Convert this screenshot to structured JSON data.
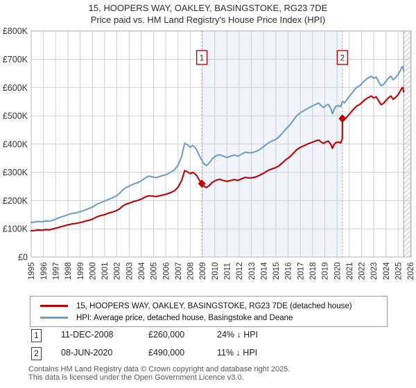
{
  "title": {
    "line1": "15, HOOPERS WAY, OAKLEY, BASINGSTOKE, RG23 7DE",
    "line2": "Price paid vs. HM Land Registry's House Price Index (HPI)"
  },
  "chart_data": {
    "type": "line",
    "x_range": [
      1995,
      2026.06
    ],
    "y_range": [
      0,
      800
    ],
    "x_ticks": [
      1995,
      1996,
      1997,
      1998,
      1999,
      2000,
      2001,
      2002,
      2003,
      2004,
      2005,
      2006,
      2007,
      2008,
      2009,
      2010,
      2011,
      2012,
      2013,
      2014,
      2015,
      2016,
      2017,
      2018,
      2019,
      2020,
      2021,
      2022,
      2023,
      2024,
      2025,
      2026
    ],
    "y_tick_values": [
      0,
      100,
      200,
      300,
      400,
      500,
      600,
      700,
      800
    ],
    "y_tick_labels": [
      "£0",
      "£100K",
      "£200K",
      "£300K",
      "£400K",
      "£500K",
      "£600K",
      "£700K",
      "£800K"
    ],
    "grid_color": "#cccfd5",
    "border_color": "#b0b3b8",
    "dotted_line_color": "#ea7f7f",
    "marker_color": "#c00000",
    "shaded_span": {
      "from": 2008.95,
      "to": 2020.44,
      "color": "#f1f4fb"
    },
    "hatch_span": {
      "from": 2025.45,
      "to": 2026.06,
      "line_color": "#c5c8ce",
      "edge_color": "#9b9ea4"
    },
    "series": [
      {
        "name": "15, HOOPERS WAY, OAKLEY, BASINGSTOKE, RG23 7DE (detached house)",
        "color": "#c00000",
        "unit": "GBP thousands",
        "points": [
          [
            1995.0,
            93
          ],
          [
            1995.3,
            94
          ],
          [
            1995.6,
            96
          ],
          [
            1995.9,
            95
          ],
          [
            1996.2,
            97
          ],
          [
            1996.5,
            96
          ],
          [
            1996.8,
            100
          ],
          [
            1997.1,
            103
          ],
          [
            1997.4,
            107
          ],
          [
            1997.7,
            110
          ],
          [
            1998.0,
            114
          ],
          [
            1998.3,
            117
          ],
          [
            1998.6,
            119
          ],
          [
            1998.9,
            121
          ],
          [
            1999.2,
            124
          ],
          [
            1999.5,
            128
          ],
          [
            1999.8,
            131
          ],
          [
            2000.1,
            136
          ],
          [
            2000.4,
            143
          ],
          [
            2000.7,
            147
          ],
          [
            2001.0,
            150
          ],
          [
            2001.3,
            155
          ],
          [
            2001.6,
            159
          ],
          [
            2001.9,
            163
          ],
          [
            2002.2,
            170
          ],
          [
            2002.5,
            181
          ],
          [
            2002.8,
            188
          ],
          [
            2003.1,
            192
          ],
          [
            2003.4,
            197
          ],
          [
            2003.7,
            200
          ],
          [
            2004.0,
            205
          ],
          [
            2004.3,
            212
          ],
          [
            2004.6,
            217
          ],
          [
            2004.9,
            216
          ],
          [
            2005.2,
            214
          ],
          [
            2005.5,
            217
          ],
          [
            2005.8,
            220
          ],
          [
            2006.1,
            223
          ],
          [
            2006.4,
            228
          ],
          [
            2006.7,
            234
          ],
          [
            2007.0,
            247
          ],
          [
            2007.3,
            271
          ],
          [
            2007.55,
            306
          ],
          [
            2007.8,
            301
          ],
          [
            2008.0,
            295
          ],
          [
            2008.2,
            300
          ],
          [
            2008.5,
            290
          ],
          [
            2008.75,
            272
          ],
          [
            2008.95,
            260
          ],
          [
            2009.15,
            249
          ],
          [
            2009.35,
            246
          ],
          [
            2009.6,
            255
          ],
          [
            2009.8,
            264
          ],
          [
            2010.1,
            272
          ],
          [
            2010.4,
            275
          ],
          [
            2010.7,
            271
          ],
          [
            2011.0,
            268
          ],
          [
            2011.3,
            271
          ],
          [
            2011.6,
            274
          ],
          [
            2011.9,
            271
          ],
          [
            2012.2,
            277
          ],
          [
            2012.5,
            282
          ],
          [
            2012.8,
            280
          ],
          [
            2013.1,
            281
          ],
          [
            2013.4,
            284
          ],
          [
            2013.7,
            290
          ],
          [
            2014.0,
            297
          ],
          [
            2014.3,
            305
          ],
          [
            2014.6,
            311
          ],
          [
            2014.9,
            315
          ],
          [
            2015.2,
            321
          ],
          [
            2015.5,
            332
          ],
          [
            2015.8,
            344
          ],
          [
            2016.1,
            353
          ],
          [
            2016.4,
            366
          ],
          [
            2016.7,
            380
          ],
          [
            2017.0,
            388
          ],
          [
            2017.3,
            394
          ],
          [
            2017.6,
            400
          ],
          [
            2017.9,
            405
          ],
          [
            2018.2,
            410
          ],
          [
            2018.5,
            414
          ],
          [
            2018.7,
            407
          ],
          [
            2018.9,
            402
          ],
          [
            2019.1,
            408
          ],
          [
            2019.3,
            410
          ],
          [
            2019.5,
            398
          ],
          [
            2019.62,
            385
          ],
          [
            2019.75,
            397
          ],
          [
            2019.9,
            405
          ],
          [
            2020.1,
            407
          ],
          [
            2020.3,
            404
          ],
          [
            2020.43,
            419
          ],
          [
            2020.44,
            490
          ],
          [
            2020.6,
            485
          ],
          [
            2020.8,
            495
          ],
          [
            2021.0,
            505
          ],
          [
            2021.3,
            521
          ],
          [
            2021.6,
            534
          ],
          [
            2021.9,
            541
          ],
          [
            2022.2,
            554
          ],
          [
            2022.5,
            563
          ],
          [
            2022.8,
            570
          ],
          [
            2023.0,
            563
          ],
          [
            2023.2,
            567
          ],
          [
            2023.4,
            553
          ],
          [
            2023.6,
            539
          ],
          [
            2023.8,
            544
          ],
          [
            2024.0,
            554
          ],
          [
            2024.2,
            563
          ],
          [
            2024.4,
            570
          ],
          [
            2024.6,
            558
          ],
          [
            2024.8,
            566
          ],
          [
            2025.0,
            575
          ],
          [
            2025.15,
            586
          ],
          [
            2025.3,
            598
          ],
          [
            2025.38,
            600
          ],
          [
            2025.45,
            585
          ]
        ]
      },
      {
        "name": "HPI: Average price, detached house, Basingstoke and Deane",
        "color": "#6d9eca",
        "unit": "GBP thousands",
        "points": [
          [
            1995.0,
            122
          ],
          [
            1995.3,
            124
          ],
          [
            1995.6,
            126
          ],
          [
            1995.9,
            125
          ],
          [
            1996.2,
            128
          ],
          [
            1996.5,
            127
          ],
          [
            1996.8,
            131
          ],
          [
            1997.1,
            136
          ],
          [
            1997.4,
            141
          ],
          [
            1997.7,
            145
          ],
          [
            1998.0,
            150
          ],
          [
            1998.3,
            154
          ],
          [
            1998.6,
            156
          ],
          [
            1998.9,
            159
          ],
          [
            1999.2,
            163
          ],
          [
            1999.5,
            168
          ],
          [
            1999.8,
            173
          ],
          [
            2000.1,
            179
          ],
          [
            2000.4,
            188
          ],
          [
            2000.7,
            193
          ],
          [
            2001.0,
            198
          ],
          [
            2001.3,
            204
          ],
          [
            2001.6,
            209
          ],
          [
            2001.9,
            215
          ],
          [
            2002.2,
            224
          ],
          [
            2002.5,
            238
          ],
          [
            2002.8,
            247
          ],
          [
            2003.1,
            253
          ],
          [
            2003.4,
            259
          ],
          [
            2003.7,
            263
          ],
          [
            2004.0,
            270
          ],
          [
            2004.3,
            279
          ],
          [
            2004.6,
            286
          ],
          [
            2004.9,
            284
          ],
          [
            2005.2,
            281
          ],
          [
            2005.5,
            285
          ],
          [
            2005.8,
            289
          ],
          [
            2006.1,
            293
          ],
          [
            2006.4,
            300
          ],
          [
            2006.7,
            308
          ],
          [
            2007.0,
            325
          ],
          [
            2007.3,
            356
          ],
          [
            2007.55,
            403
          ],
          [
            2007.8,
            396
          ],
          [
            2008.0,
            388
          ],
          [
            2008.2,
            395
          ],
          [
            2008.5,
            382
          ],
          [
            2008.75,
            358
          ],
          [
            2008.95,
            342
          ],
          [
            2009.15,
            328
          ],
          [
            2009.35,
            324
          ],
          [
            2009.6,
            335
          ],
          [
            2009.8,
            348
          ],
          [
            2010.1,
            358
          ],
          [
            2010.4,
            362
          ],
          [
            2010.7,
            357
          ],
          [
            2011.0,
            352
          ],
          [
            2011.3,
            357
          ],
          [
            2011.6,
            361
          ],
          [
            2011.9,
            357
          ],
          [
            2012.2,
            364
          ],
          [
            2012.5,
            371
          ],
          [
            2012.8,
            369
          ],
          [
            2013.1,
            370
          ],
          [
            2013.4,
            374
          ],
          [
            2013.7,
            381
          ],
          [
            2014.0,
            391
          ],
          [
            2014.3,
            401
          ],
          [
            2014.6,
            409
          ],
          [
            2014.9,
            414
          ],
          [
            2015.2,
            423
          ],
          [
            2015.5,
            437
          ],
          [
            2015.8,
            452
          ],
          [
            2016.1,
            465
          ],
          [
            2016.4,
            482
          ],
          [
            2016.7,
            500
          ],
          [
            2017.0,
            511
          ],
          [
            2017.3,
            518
          ],
          [
            2017.6,
            526
          ],
          [
            2017.9,
            533
          ],
          [
            2018.2,
            539
          ],
          [
            2018.5,
            545
          ],
          [
            2018.7,
            536
          ],
          [
            2018.9,
            529
          ],
          [
            2019.1,
            537
          ],
          [
            2019.3,
            540
          ],
          [
            2019.5,
            524
          ],
          [
            2019.62,
            507
          ],
          [
            2019.75,
            522
          ],
          [
            2019.9,
            533
          ],
          [
            2020.1,
            536
          ],
          [
            2020.3,
            532
          ],
          [
            2020.44,
            551
          ],
          [
            2020.6,
            545
          ],
          [
            2020.8,
            556
          ],
          [
            2021.0,
            567
          ],
          [
            2021.3,
            585
          ],
          [
            2021.6,
            600
          ],
          [
            2021.9,
            608
          ],
          [
            2022.2,
            622
          ],
          [
            2022.5,
            633
          ],
          [
            2022.8,
            640
          ],
          [
            2023.0,
            633
          ],
          [
            2023.2,
            637
          ],
          [
            2023.4,
            621
          ],
          [
            2023.6,
            606
          ],
          [
            2023.8,
            611
          ],
          [
            2024.0,
            622
          ],
          [
            2024.2,
            633
          ],
          [
            2024.4,
            640
          ],
          [
            2024.6,
            627
          ],
          [
            2024.8,
            636
          ],
          [
            2025.0,
            646
          ],
          [
            2025.15,
            658
          ],
          [
            2025.3,
            672
          ],
          [
            2025.38,
            674
          ],
          [
            2025.45,
            658
          ]
        ]
      }
    ],
    "sales": [
      {
        "marker": "1",
        "date": "11-DEC-2008",
        "year": 2008.95,
        "price_gbp": 260000,
        "price_label": "£260,000",
        "hpi_diff": "24% ↓ HPI"
      },
      {
        "marker": "2",
        "date": "08-JUN-2020",
        "year": 2020.44,
        "price_gbp": 490000,
        "price_label": "£490,000",
        "hpi_diff": "11% ↓ HPI"
      }
    ]
  },
  "footer": {
    "line1": "Contains HM Land Registry data © Crown copyright and database right 2025.",
    "line2": "This data is licensed under the Open Government Licence v3.0."
  }
}
